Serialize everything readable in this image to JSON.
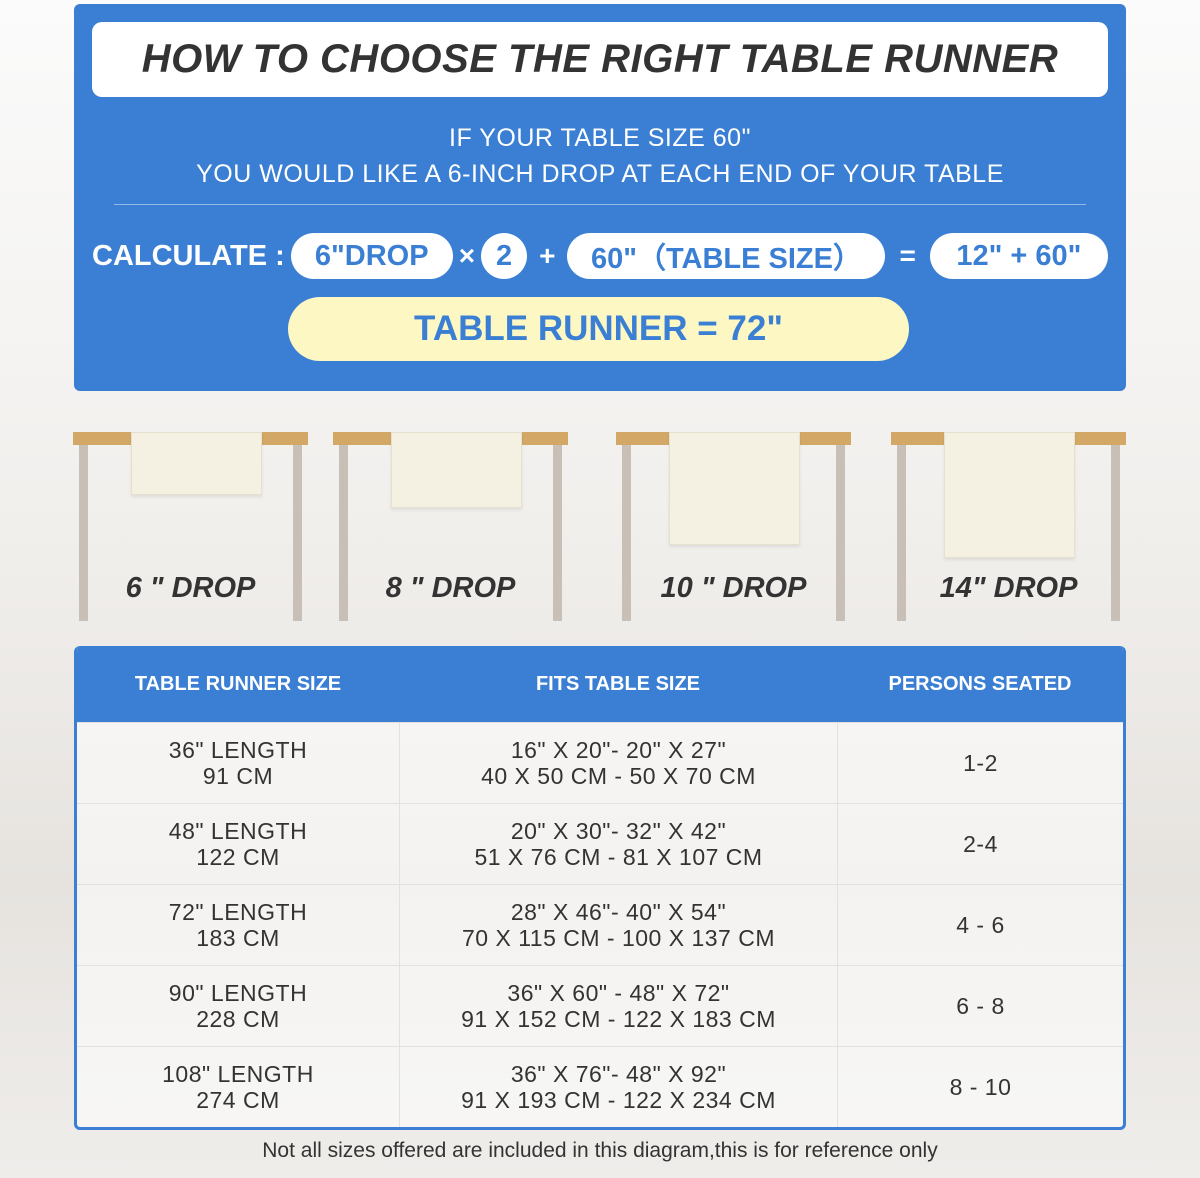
{
  "title": "HOW TO CHOOSE THE RIGHT TABLE RUNNER",
  "intro": [
    "IF YOUR TABLE SIZE 60\"",
    "YOU WOULD LIKE A 6-INCH DROP AT EACH END OF YOUR TABLE"
  ],
  "calc": {
    "label": "CALCULATE :",
    "drop": "6\"DROP",
    "times": "×",
    "multiplier": "2",
    "plus": "+",
    "table_size": "60\"（TABLE SIZE）",
    "equals": "=",
    "sum": "12\" + 60\"",
    "result": "TABLE RUNNER = 72\""
  },
  "drops": [
    {
      "label": "6 \" DROP"
    },
    {
      "label": "8 \" DROP"
    },
    {
      "label": "10 \" DROP"
    },
    {
      "label": "14\" DROP"
    }
  ],
  "size_table": {
    "headers": [
      "TABLE RUNNER SIZE",
      "FITS TABLE SIZE",
      "PERSONS SEATED"
    ],
    "rows": [
      {
        "size": [
          "36\" LENGTH",
          "91 CM"
        ],
        "fits": [
          "16\" X 20\"- 20\" X 27\"",
          "40 X 50 CM - 50 X 70 CM"
        ],
        "persons": "1-2"
      },
      {
        "size": [
          "48\" LENGTH",
          "122 CM"
        ],
        "fits": [
          "20\" X 30\"- 32\" X 42\"",
          "51 X 76 CM - 81 X 107 CM"
        ],
        "persons": "2-4"
      },
      {
        "size": [
          "72\" LENGTH",
          "183 CM"
        ],
        "fits": [
          "28\" X 46\"- 40\" X 54\"",
          "70 X 115 CM - 100 X 137 CM"
        ],
        "persons": "4 - 6"
      },
      {
        "size": [
          "90\" LENGTH",
          "228 CM"
        ],
        "fits": [
          "36\" X 60\" - 48\" X 72\"",
          "91 X 152 CM - 122 X 183 CM"
        ],
        "persons": "6 - 8"
      },
      {
        "size": [
          "108\" LENGTH",
          "274 CM"
        ],
        "fits": [
          "36\" X 76\"- 48\" X 92\"",
          "91 X 193 CM - 122 X 234 CM"
        ],
        "persons": "8 - 10"
      }
    ]
  },
  "note": "Not all sizes offered are included in this diagram,this is for reference only",
  "colors": {
    "accent": "#3a7fd3",
    "highlight": "#fdf7c3",
    "wood": "#d3a867"
  }
}
